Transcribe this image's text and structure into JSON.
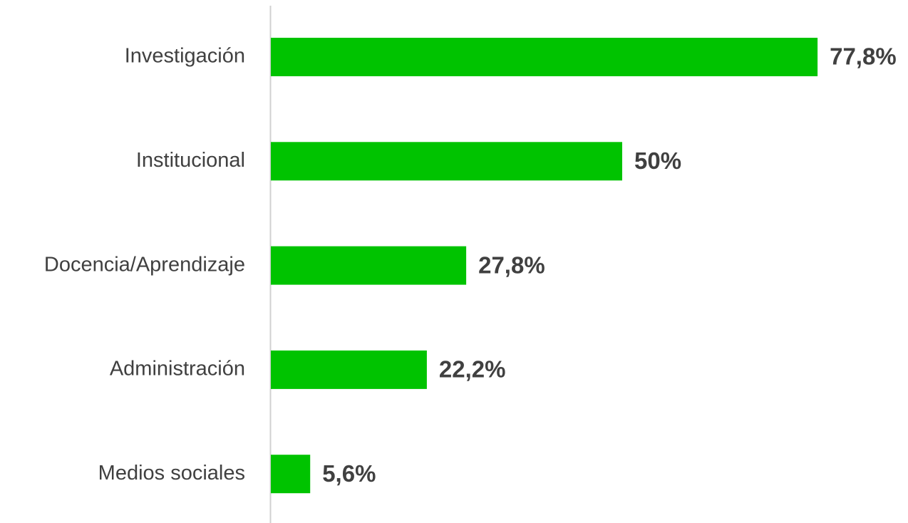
{
  "chart_data": {
    "type": "bar",
    "orientation": "horizontal",
    "categories": [
      "Investigación",
      "Institucional",
      "Docencia/Aprendizaje",
      "Administración",
      "Medios sociales"
    ],
    "values": [
      77.8,
      50,
      27.8,
      22.2,
      5.6
    ],
    "value_labels": [
      "77,8%",
      "50%",
      "27,8%",
      "22,2%",
      "5,6%"
    ],
    "color": "#00c300"
  }
}
